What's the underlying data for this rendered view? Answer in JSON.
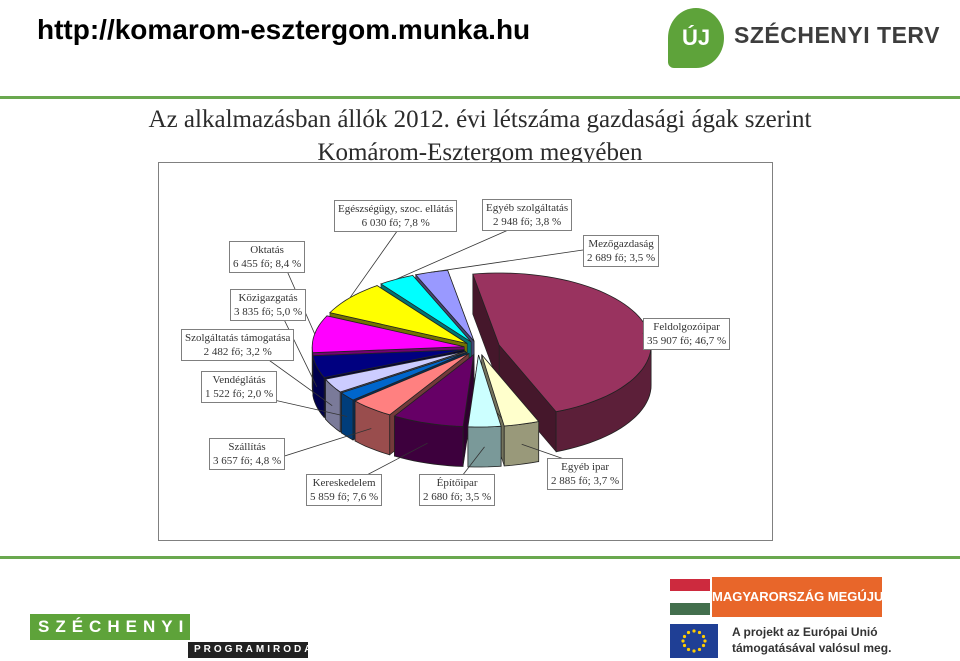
{
  "header": {
    "url": "http://komarom-esztergom.munka.hu",
    "logo_text": "SZÉCHENYI TERV",
    "logo_mark": "ÚJ"
  },
  "title": {
    "line1": "Az alkalmazásban állók 2012. évi létszáma gazdasági ágak szerint",
    "line2": "Komárom-Esztergom megyében"
  },
  "chart_data": {
    "type": "pie",
    "style": "3d-exploded",
    "slices": [
      {
        "label_line1": "Feldolgozóipar",
        "label_line2": "35 907 fő; 46,7 %",
        "value": 35907,
        "percent": 46.7,
        "color": "#99335f"
      },
      {
        "label_line1": "Egyéb ipar",
        "label_line2": "2 885 fő; 3,7 %",
        "value": 2885,
        "percent": 3.7,
        "color": "#ffffcc"
      },
      {
        "label_line1": "Építőipar",
        "label_line2": "2 680 fő; 3,5 %",
        "value": 2680,
        "percent": 3.5,
        "color": "#ccffff"
      },
      {
        "label_line1": "Kereskedelem",
        "label_line2": "5 859 fő; 7,6 %",
        "value": 5859,
        "percent": 7.6,
        "color": "#660066"
      },
      {
        "label_line1": "Szállítás",
        "label_line2": "3 657 fő; 4,8 %",
        "value": 3657,
        "percent": 4.8,
        "color": "#ff8080"
      },
      {
        "label_line1": "Vendéglátás",
        "label_line2": "1 522 fő; 2,0 %",
        "value": 1522,
        "percent": 2.0,
        "color": "#0066cc"
      },
      {
        "label_line1": "Szolgáltatás támogatása",
        "label_line2": "2 482 fő; 3,2 %",
        "value": 2482,
        "percent": 3.2,
        "color": "#ccccff"
      },
      {
        "label_line1": "Közigazgatás",
        "label_line2": "3 835 fő; 5,0 %",
        "value": 3835,
        "percent": 5.0,
        "color": "#000080"
      },
      {
        "label_line1": "Oktatás",
        "label_line2": "6 455 fő; 8,4 %",
        "value": 6455,
        "percent": 8.4,
        "color": "#ff00ff"
      },
      {
        "label_line1": "Egészségügy, szoc. ellátás",
        "label_line2": "6 030 fő; 7,8 %",
        "value": 6030,
        "percent": 7.8,
        "color": "#ffff00"
      },
      {
        "label_line1": "Egyéb szolgáltatás",
        "label_line2": "2 948 fő; 3,8 %",
        "value": 2948,
        "percent": 3.8,
        "color": "#00ffff"
      },
      {
        "label_line1": "Mezőgazdaság",
        "label_line2": "2 689 fő; 3,5 %",
        "value": 2689,
        "percent": 3.5,
        "color": "#9999ff"
      }
    ]
  },
  "footer": {
    "program_top": "SZÉCHENYI",
    "program_bottom": "PROGRAMIRODA",
    "mm_text": "MAGYARORSZÁG MEGÚJUL",
    "eu_line1": "A projekt az Európai Unió",
    "eu_line2": "támogatásával valósul meg."
  }
}
